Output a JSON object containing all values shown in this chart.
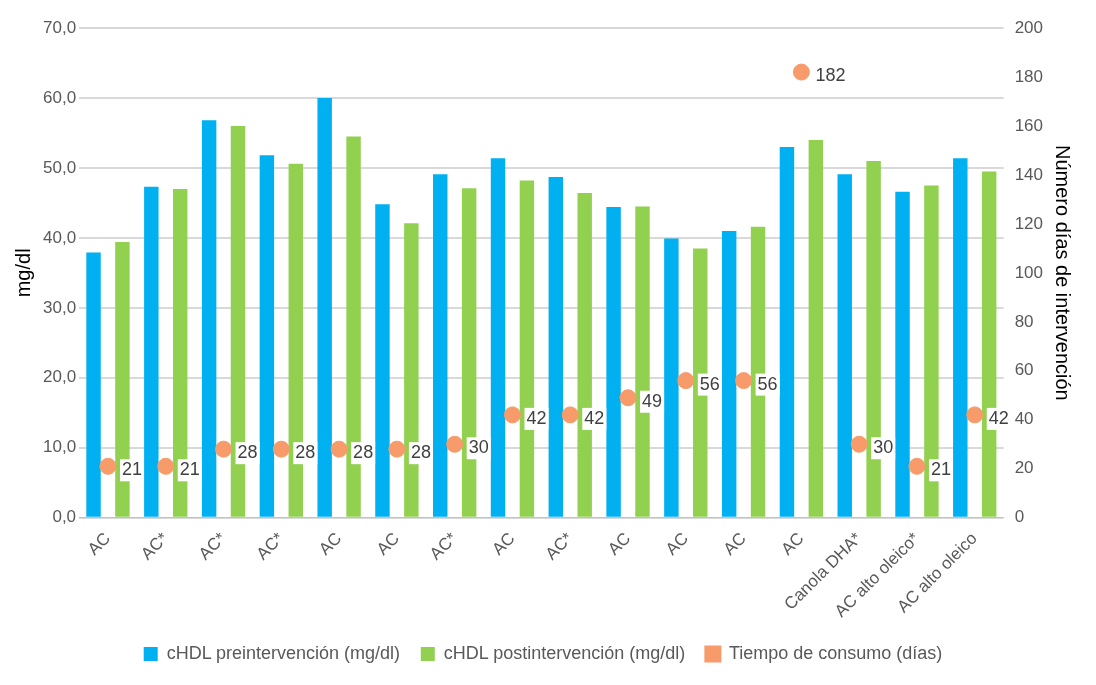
{
  "chart_data": {
    "type": "bar",
    "ylabel": "mg/dl",
    "y2label": "Número días de intervención",
    "categories": [
      "AC",
      "AC*",
      "AC*",
      "AC*",
      "AC",
      "AC",
      "AC*",
      "AC",
      "AC*",
      "AC",
      "AC",
      "AC",
      "AC",
      "Canola DHA*",
      "AC alto oleico*",
      "AC alto oleico"
    ],
    "series": [
      {
        "name": "cHDL preintervención (mg/dl)",
        "color": "#00b0f0",
        "values": [
          37.9,
          47.3,
          56.8,
          51.8,
          60.0,
          44.8,
          49.1,
          51.4,
          48.7,
          44.4,
          39.9,
          41.0,
          53.0,
          49.1,
          46.6,
          51.4
        ]
      },
      {
        "name": "cHDL postintervención (mg/dl)",
        "color": "#92d050",
        "values": [
          39.4,
          47.0,
          56.0,
          50.6,
          54.5,
          42.1,
          47.1,
          48.2,
          46.4,
          44.5,
          38.5,
          41.6,
          54.0,
          51.0,
          47.5,
          49.5
        ]
      },
      {
        "name": "Tiempo de consumo (días)",
        "type": "scatter",
        "axis": "y2",
        "color": "#f79b6a",
        "marker": "circle",
        "data_labels": true,
        "values": [
          21,
          21,
          28,
          28,
          28,
          28,
          30,
          42,
          42,
          49,
          56,
          56,
          182,
          30,
          21,
          42
        ]
      }
    ],
    "ylim": [
      0,
      70
    ],
    "yticks": [
      {
        "value": 0,
        "label": "0,0"
      },
      {
        "value": 10,
        "label": "10,0"
      },
      {
        "value": 20,
        "label": "20,0"
      },
      {
        "value": 30,
        "label": "30,0"
      },
      {
        "value": 40,
        "label": "40,0"
      },
      {
        "value": 50,
        "label": "50,0"
      },
      {
        "value": 60,
        "label": "60,0"
      },
      {
        "value": 70,
        "label": "70,0"
      }
    ],
    "y2lim": [
      0,
      200
    ],
    "y2ticks": [
      0,
      20,
      40,
      60,
      80,
      100,
      120,
      140,
      160,
      180,
      200
    ],
    "grid": "y",
    "legend": "bottom"
  }
}
